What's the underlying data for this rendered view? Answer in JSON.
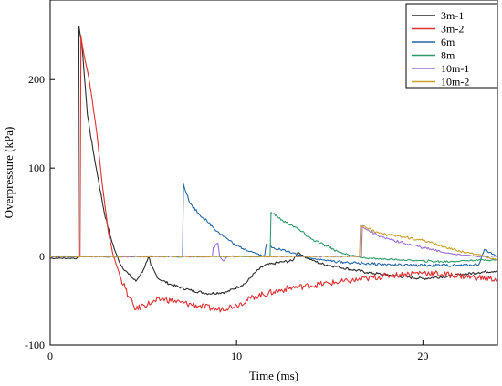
{
  "chart_data": {
    "type": "line",
    "xlabel": "Time (ms)",
    "ylabel": "Overpressure (kPa)",
    "xlim": [
      0,
      24
    ],
    "ylim": [
      -100,
      290
    ],
    "x_ticks": [
      0,
      10,
      20
    ],
    "y_ticks": [
      -100,
      0,
      100,
      200
    ],
    "grid": false,
    "legend_position": "top-right",
    "series": [
      {
        "name": "3m-1",
        "color": "#2b2b2b",
        "points": [
          [
            0,
            -2
          ],
          [
            1.2,
            -2
          ],
          [
            1.5,
            -2
          ],
          [
            1.55,
            260
          ],
          [
            1.7,
            240
          ],
          [
            2.0,
            160
          ],
          [
            2.3,
            120
          ],
          [
            2.6,
            85
          ],
          [
            2.9,
            50
          ],
          [
            3.2,
            25
          ],
          [
            3.5,
            5
          ],
          [
            3.8,
            -10
          ],
          [
            4.2,
            -20
          ],
          [
            4.6,
            -28
          ],
          [
            5.0,
            -15
          ],
          [
            5.2,
            -5
          ],
          [
            5.3,
            0
          ],
          [
            5.4,
            -10
          ],
          [
            5.8,
            -25
          ],
          [
            6.5,
            -32
          ],
          [
            7.5,
            -38
          ],
          [
            8.5,
            -42
          ],
          [
            9.5,
            -40
          ],
          [
            10.5,
            -30
          ],
          [
            11.0,
            -18
          ],
          [
            11.5,
            -10
          ],
          [
            12.0,
            -8
          ],
          [
            12.5,
            -6
          ],
          [
            13.0,
            -5
          ],
          [
            13.3,
            5
          ],
          [
            13.6,
            0
          ],
          [
            14.5,
            -8
          ],
          [
            15.5,
            -12
          ],
          [
            17.0,
            -18
          ],
          [
            18.5,
            -22
          ],
          [
            20.0,
            -25
          ],
          [
            21.5,
            -22
          ],
          [
            23.0,
            -18
          ],
          [
            24.0,
            -16
          ]
        ]
      },
      {
        "name": "3m-2",
        "color": "#e03030",
        "points": [
          [
            0,
            0
          ],
          [
            1.5,
            0
          ],
          [
            1.6,
            0
          ],
          [
            1.65,
            250
          ],
          [
            1.8,
            230
          ],
          [
            2.0,
            210
          ],
          [
            2.2,
            185
          ],
          [
            2.5,
            140
          ],
          [
            2.8,
            80
          ],
          [
            3.1,
            30
          ],
          [
            3.4,
            0
          ],
          [
            3.8,
            -25
          ],
          [
            4.2,
            -45
          ],
          [
            4.6,
            -60
          ],
          [
            5.0,
            -55
          ],
          [
            5.5,
            -52
          ],
          [
            6.0,
            -48
          ],
          [
            7.0,
            -52
          ],
          [
            8.0,
            -56
          ],
          [
            9.0,
            -60
          ],
          [
            10.0,
            -55
          ],
          [
            11.0,
            -45
          ],
          [
            12.0,
            -40
          ],
          [
            13.0,
            -35
          ],
          [
            14.0,
            -33
          ],
          [
            15.0,
            -30
          ],
          [
            16.0,
            -28
          ],
          [
            17.0,
            -25
          ],
          [
            18.0,
            -22
          ],
          [
            19.0,
            -20
          ],
          [
            20.0,
            -18
          ],
          [
            21.0,
            -20
          ],
          [
            22.0,
            -22
          ],
          [
            23.0,
            -24
          ],
          [
            24.0,
            -26
          ]
        ]
      },
      {
        "name": "6m",
        "color": "#2366a8",
        "points": [
          [
            0,
            0
          ],
          [
            7.1,
            0
          ],
          [
            7.15,
            82
          ],
          [
            7.5,
            60
          ],
          [
            8.0,
            48
          ],
          [
            8.5,
            38
          ],
          [
            9.0,
            28
          ],
          [
            9.5,
            20
          ],
          [
            10.0,
            12
          ],
          [
            10.5,
            8
          ],
          [
            11.0,
            4
          ],
          [
            11.5,
            0
          ],
          [
            11.6,
            14
          ],
          [
            12.0,
            10
          ],
          [
            13.0,
            4
          ],
          [
            14.0,
            -2
          ],
          [
            15.0,
            -5
          ],
          [
            16.0,
            -7
          ],
          [
            17.0,
            -8
          ],
          [
            18.0,
            -9
          ],
          [
            19.0,
            -10
          ],
          [
            20.0,
            -10
          ],
          [
            21.0,
            -10
          ],
          [
            22.0,
            -10
          ],
          [
            23.0,
            -9
          ],
          [
            23.3,
            8
          ],
          [
            24.0,
            0
          ]
        ]
      },
      {
        "name": "8m",
        "color": "#2e9c6a",
        "points": [
          [
            0,
            0
          ],
          [
            11.8,
            0
          ],
          [
            11.85,
            50
          ],
          [
            12.2,
            45
          ],
          [
            12.5,
            40
          ],
          [
            13.0,
            35
          ],
          [
            13.5,
            28
          ],
          [
            14.0,
            20
          ],
          [
            14.5,
            15
          ],
          [
            15.0,
            10
          ],
          [
            15.5,
            5
          ],
          [
            16.0,
            2
          ],
          [
            16.5,
            0
          ],
          [
            17.0,
            -2
          ],
          [
            18.0,
            -3
          ],
          [
            19.0,
            -4
          ],
          [
            20.0,
            -5
          ],
          [
            21.0,
            -6
          ],
          [
            22.0,
            -5
          ],
          [
            23.0,
            -4
          ],
          [
            24.0,
            -4
          ]
        ]
      },
      {
        "name": "10m-1",
        "color": "#9a6fd6",
        "points": [
          [
            0,
            0
          ],
          [
            8.7,
            0
          ],
          [
            8.75,
            10
          ],
          [
            9.0,
            15
          ],
          [
            9.1,
            0
          ],
          [
            9.3,
            -5
          ],
          [
            9.5,
            0
          ],
          [
            16.7,
            0
          ],
          [
            16.75,
            35
          ],
          [
            17.0,
            30
          ],
          [
            17.5,
            25
          ],
          [
            18.0,
            20
          ],
          [
            19.0,
            15
          ],
          [
            20.0,
            10
          ],
          [
            21.0,
            5
          ],
          [
            22.0,
            2
          ],
          [
            23.0,
            0
          ],
          [
            24.0,
            0
          ]
        ]
      },
      {
        "name": "10m-2",
        "color": "#c9a02a",
        "points": [
          [
            0,
            0
          ],
          [
            16.6,
            0
          ],
          [
            16.65,
            35
          ],
          [
            17.0,
            32
          ],
          [
            17.5,
            28
          ],
          [
            18.0,
            25
          ],
          [
            19.0,
            22
          ],
          [
            20.0,
            18
          ],
          [
            21.0,
            12
          ],
          [
            22.0,
            6
          ],
          [
            23.0,
            2
          ],
          [
            24.0,
            -4
          ]
        ]
      }
    ]
  }
}
